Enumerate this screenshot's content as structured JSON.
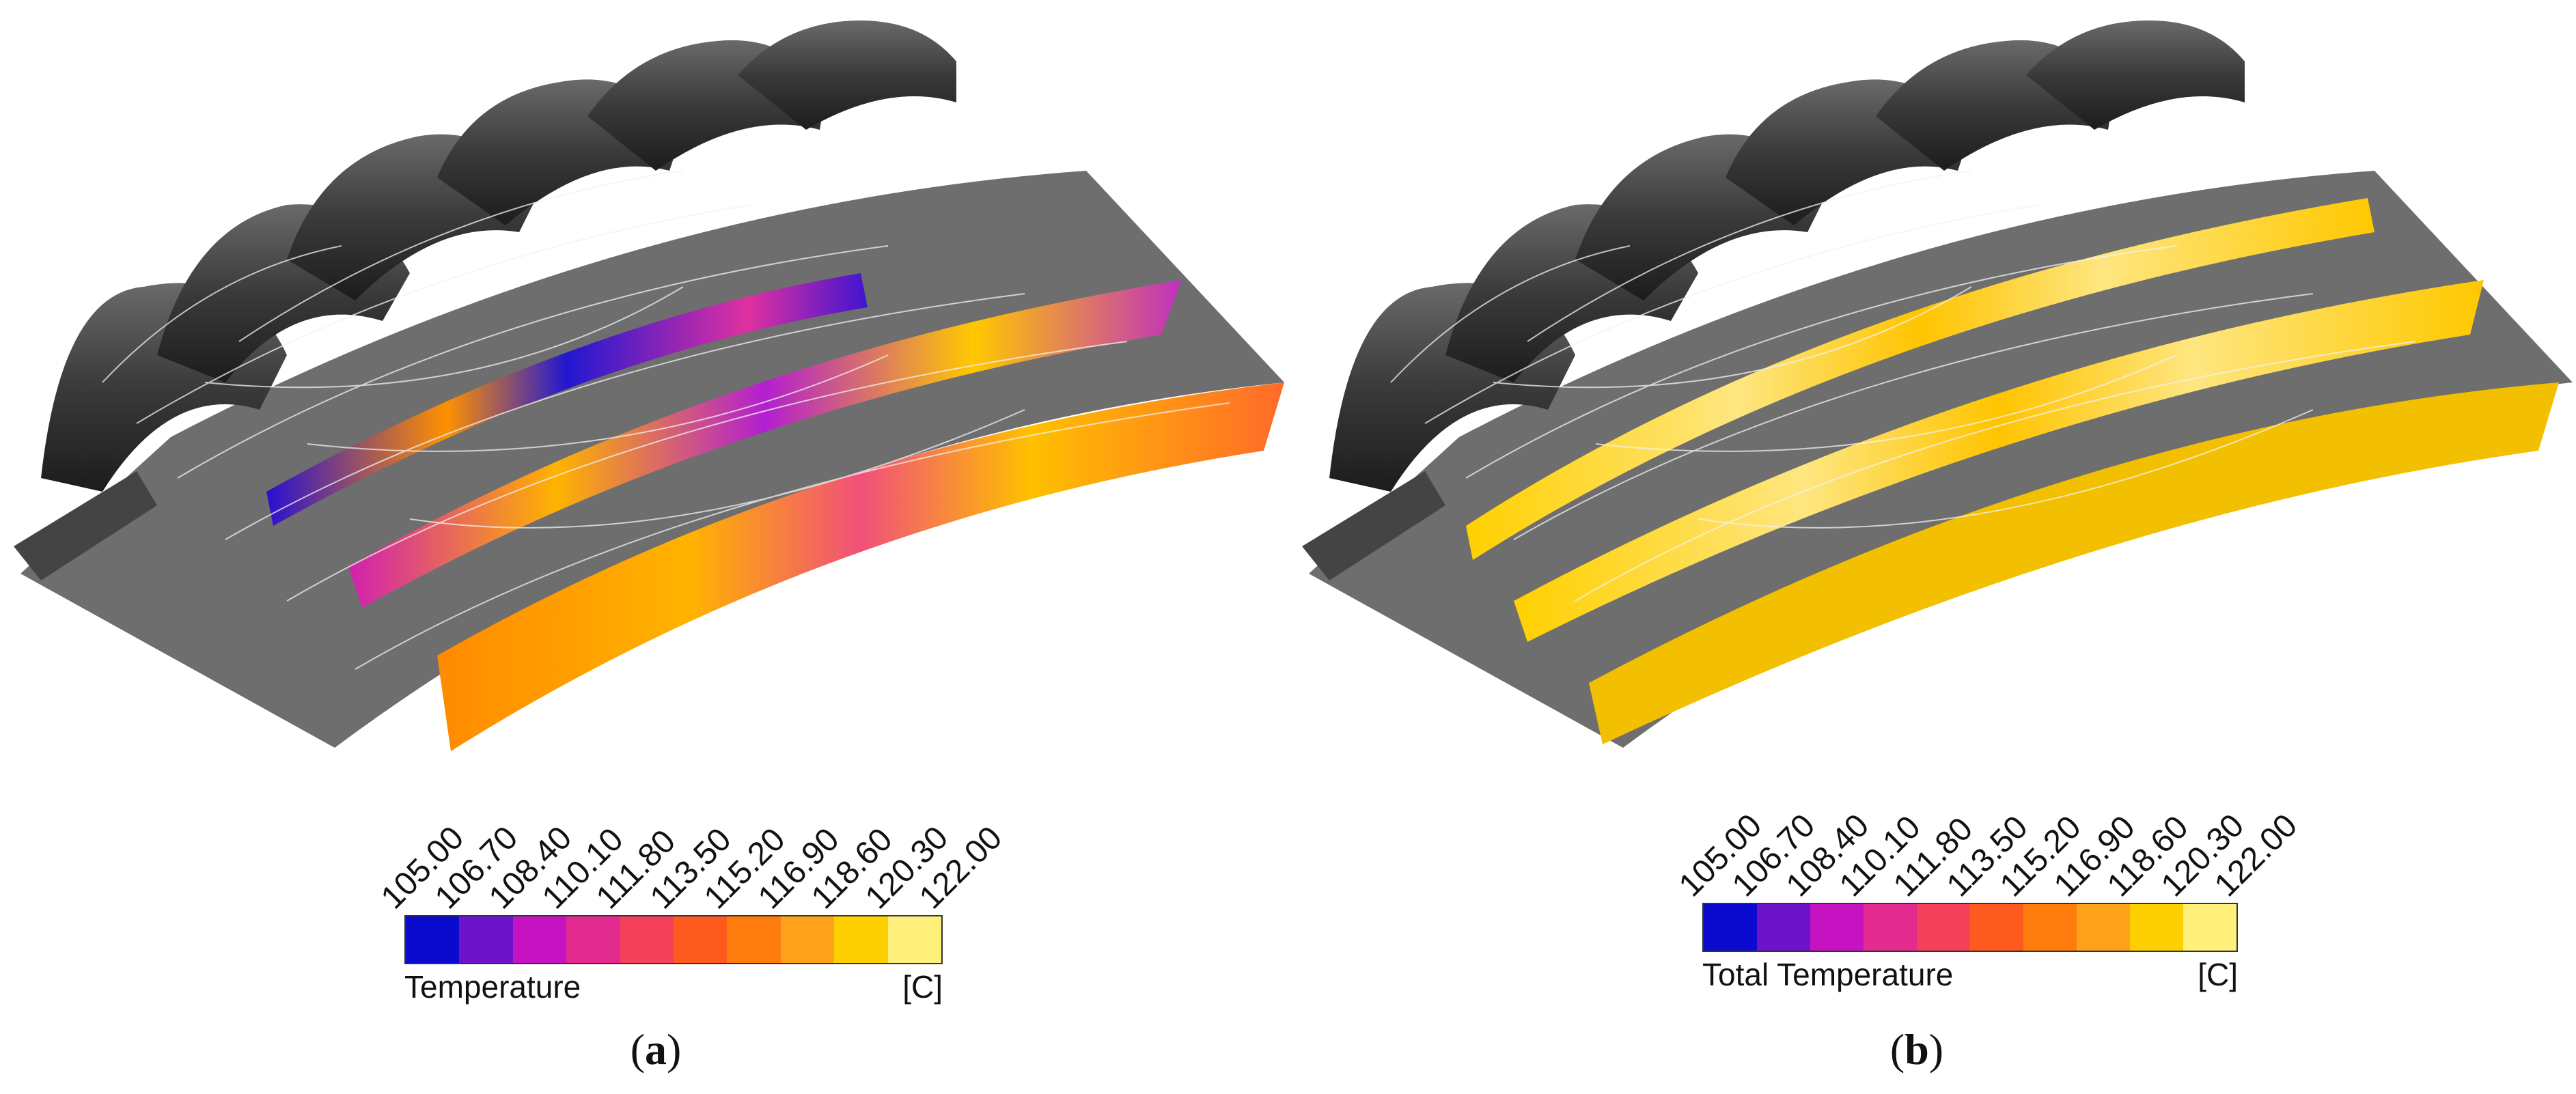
{
  "panels": [
    {
      "id": "a",
      "label": "a",
      "legend_title": "Temperature",
      "unit": "[C]",
      "colorbar": {
        "ticks": [
          "105.00",
          "106.70",
          "108.40",
          "110.10",
          "111.80",
          "113.50",
          "115.20",
          "116.90",
          "118.60",
          "120.30",
          "122.00"
        ],
        "colors": [
          "#0b0bd0",
          "#6d13c9",
          "#c613c2",
          "#e22a8f",
          "#f4405a",
          "#fc5a1e",
          "#fd7c0c",
          "#fea21a",
          "#ffd000",
          "#fef07a"
        ]
      }
    },
    {
      "id": "b",
      "label": "b",
      "legend_title": "Total Temperature",
      "unit": "[C]",
      "colorbar": {
        "ticks": [
          "105.00",
          "106.70",
          "108.40",
          "110.10",
          "111.80",
          "113.50",
          "115.20",
          "116.90",
          "118.60",
          "120.30",
          "122.00"
        ],
        "colors": [
          "#0b0bd0",
          "#6d13c9",
          "#c613c2",
          "#e22a8f",
          "#f4405a",
          "#fc5a1e",
          "#fd7c0c",
          "#fea21a",
          "#ffd000",
          "#fef07a"
        ]
      }
    }
  ]
}
